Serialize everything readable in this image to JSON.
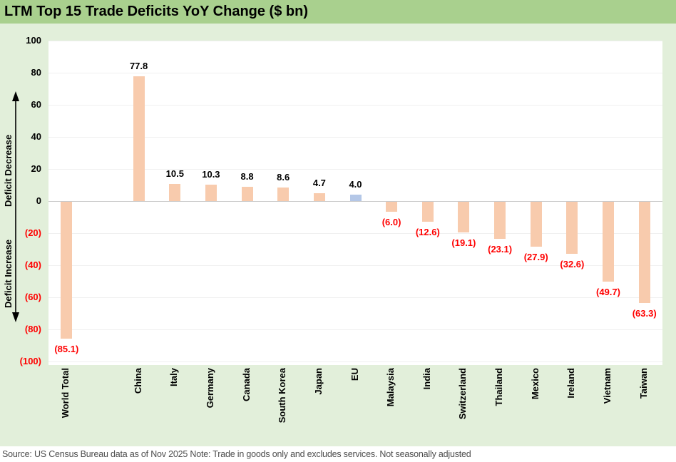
{
  "title": "LTM Top 15 Trade Deficits YoY Change ($ bn)",
  "source_note": "Source: US Census Bureau data as of Nov 2025 Note: Trade in goods only and excludes services. Not seasonally adjusted",
  "axis_annotation": {
    "decrease_label": "Deficit Decrease",
    "increase_label": "Deficit Increase"
  },
  "colors": {
    "banner_green": "#A9D08E",
    "background_green": "#E2EFDA",
    "bar_default": "#F8CBAD",
    "bar_highlight": "#B4C7E7",
    "negative_red": "#FF0000",
    "gridline": "#F0F0F0",
    "zero_line": "#C9C9C9",
    "source_text": "#4D4D4D"
  },
  "chart_data": {
    "type": "bar",
    "title": "LTM Top 15 Trade Deficits YoY Change ($ bn)",
    "categories": [
      "World Total",
      "China",
      "Italy",
      "Germany",
      "Canada",
      "South Korea",
      "Japan",
      "EU",
      "Malaysia",
      "India",
      "Switzerland",
      "Thailand",
      "Mexico",
      "Ireland",
      "Vietnam",
      "Taiwan"
    ],
    "values": [
      -85.1,
      77.8,
      10.5,
      10.3,
      8.8,
      8.6,
      4.7,
      4.0,
      -6.0,
      -12.6,
      -19.1,
      -23.1,
      -27.9,
      -32.6,
      -49.7,
      -63.3
    ],
    "value_labels": [
      "(85.1)",
      "77.8",
      "10.5",
      "10.3",
      "8.8",
      "8.6",
      "4.7",
      "4.0",
      "(6.0)",
      "(12.6)",
      "(19.1)",
      "(23.1)",
      "(27.9)",
      "(32.6)",
      "(49.7)",
      "(63.3)"
    ],
    "highlight_category": "EU",
    "separator_after_first": true,
    "xlabel": "",
    "ylabel": "",
    "ylim": [
      -100,
      100
    ],
    "yticks": [
      100,
      80,
      60,
      40,
      20,
      0,
      -20,
      -40,
      -60,
      -80,
      -100
    ],
    "ytick_labels": [
      "100",
      "80",
      "60",
      "40",
      "20",
      "0",
      "(20)",
      "(40)",
      "(60)",
      "(80)",
      "(100)"
    ],
    "grid": true,
    "legend": false
  }
}
